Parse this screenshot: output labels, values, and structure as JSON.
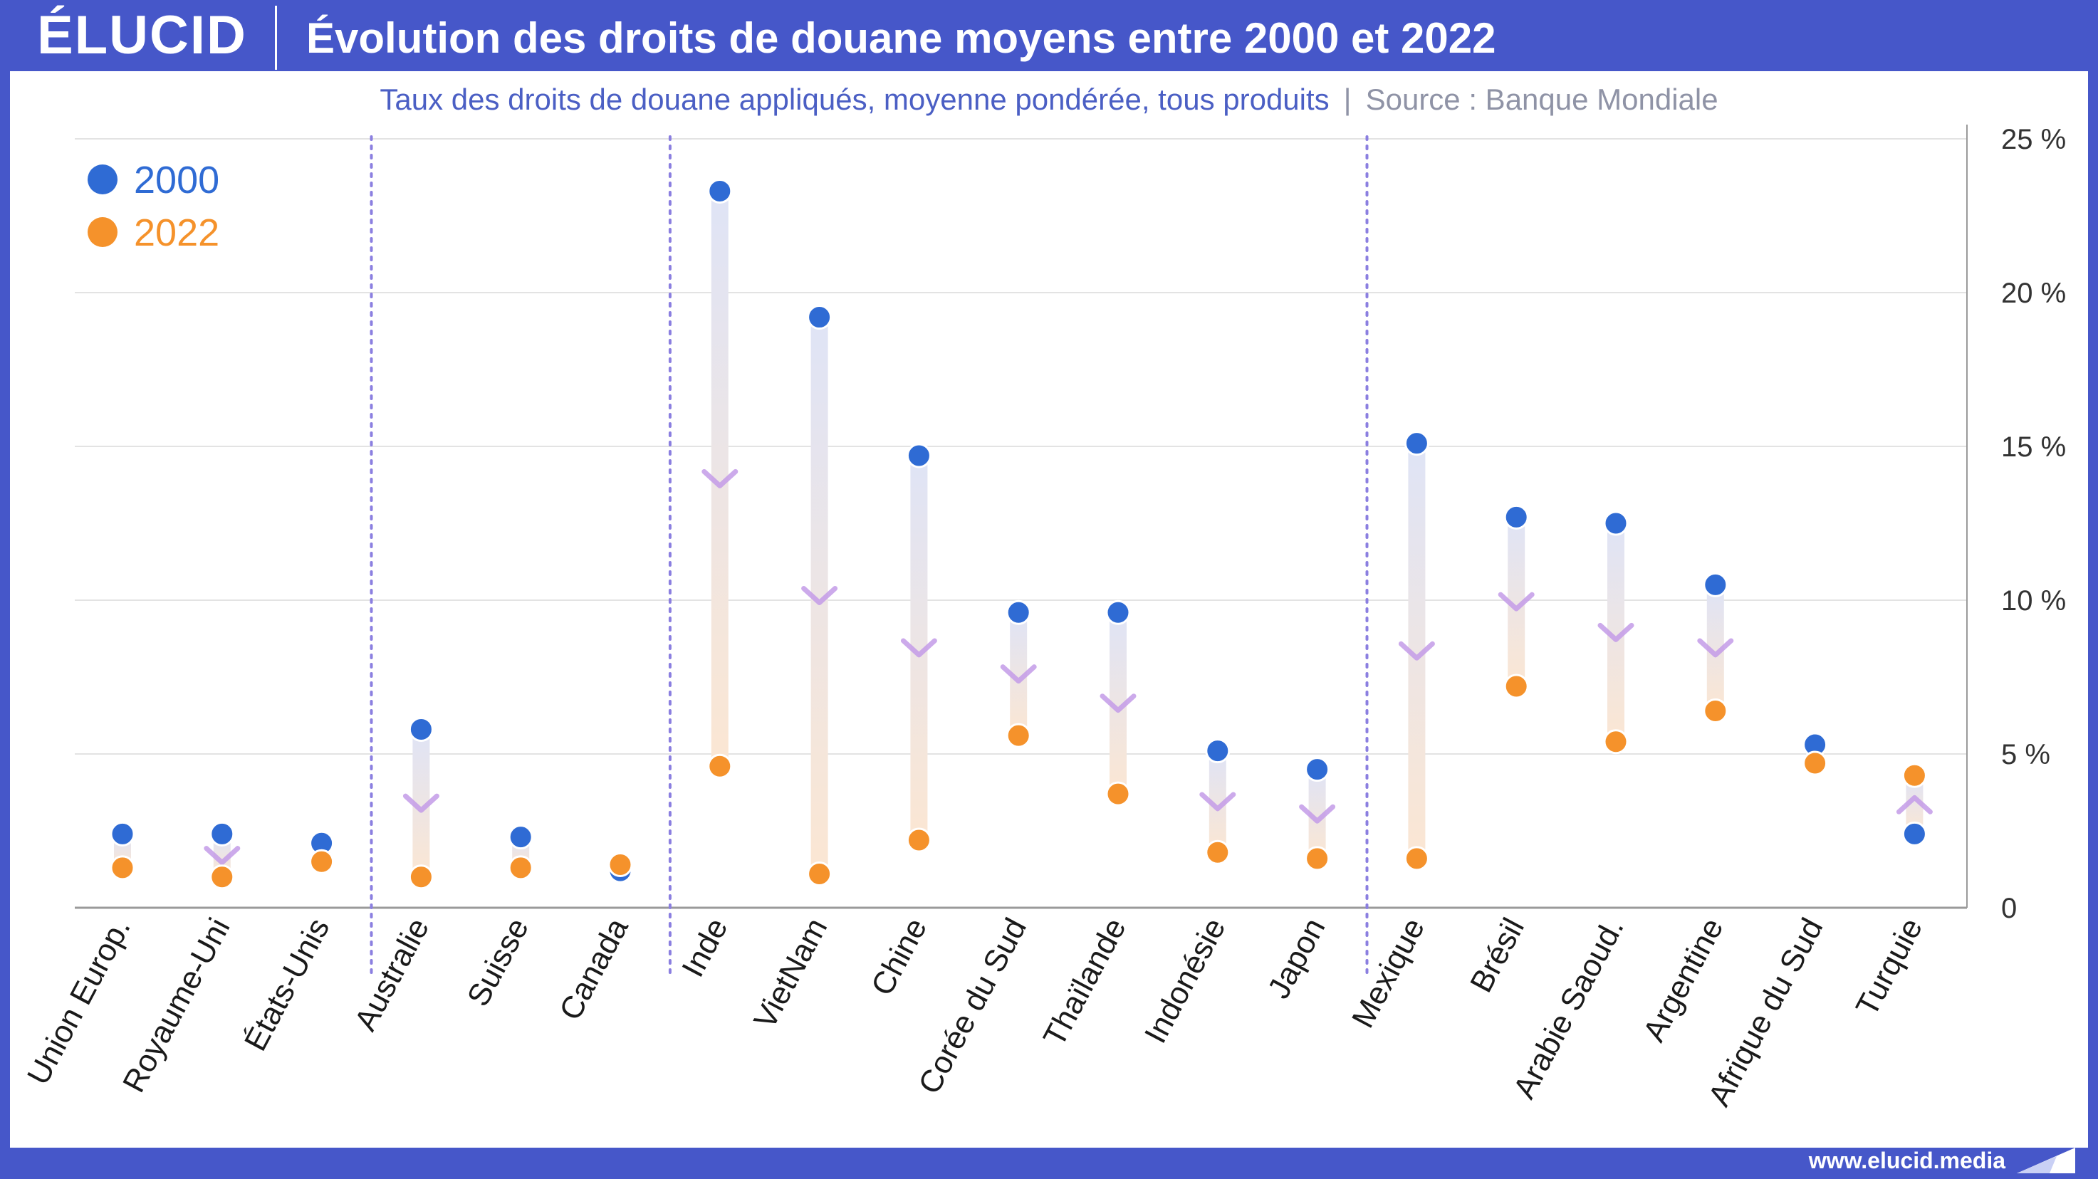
{
  "header": {
    "logo_text": "ÉLUCID",
    "title": "Évolution des droits de douane moyens entre 2000 et 2022"
  },
  "subtitle": {
    "main": "Taux des droits de douane appliqués, moyenne pondérée, tous produits",
    "separator": "|",
    "source": "Source : Banque Mondiale"
  },
  "footer": {
    "url": "www.elucid.media"
  },
  "colors": {
    "brand_blue": "#4657c9",
    "series_2000": "#2f6bd4",
    "series_2022": "#f5922b",
    "arrow": "#c39be8",
    "group_separator": "#8b7fe0"
  },
  "chart_data": {
    "type": "dumbbell",
    "title": "Évolution des droits de douane moyens entre 2000 et 2022",
    "subtitle": "Taux des droits de douane appliqués, moyenne pondérée, tous produits",
    "ylim": [
      0,
      25
    ],
    "y_ticks": [
      0,
      5,
      10,
      15,
      20,
      25
    ],
    "y_tick_labels": [
      "0",
      "5 %",
      "10 %",
      "15 %",
      "20 %",
      "25 %"
    ],
    "y_axis_side": "right",
    "grid": true,
    "legend": {
      "placement": "top-left",
      "entries": [
        "2000",
        "2022"
      ]
    },
    "categories": [
      "Union Europ.",
      "Royaume-Uni",
      "États-Unis",
      "Australie",
      "Suisse",
      "Canada",
      "Inde",
      "VietNam",
      "Chine",
      "Corée du Sud",
      "Thaïlande",
      "Indonésie",
      "Japon",
      "Mexique",
      "Brésil",
      "Arabie Saoud.",
      "Argentine",
      "Afrique du Sud",
      "Turquie"
    ],
    "series": [
      {
        "name": "2000",
        "values": [
          2.4,
          2.4,
          2.1,
          5.8,
          2.3,
          1.2,
          23.3,
          19.2,
          14.7,
          9.6,
          9.6,
          5.1,
          4.5,
          15.1,
          12.7,
          12.5,
          10.5,
          5.3,
          2.4
        ]
      },
      {
        "name": "2022",
        "values": [
          1.3,
          1.0,
          1.5,
          1.0,
          1.3,
          1.4,
          4.6,
          1.1,
          2.2,
          5.6,
          3.7,
          1.8,
          1.6,
          1.6,
          7.2,
          5.4,
          6.4,
          4.7,
          4.3
        ]
      }
    ],
    "group_separators_after": [
      "États-Unis",
      "Canada",
      "Japon"
    ]
  }
}
